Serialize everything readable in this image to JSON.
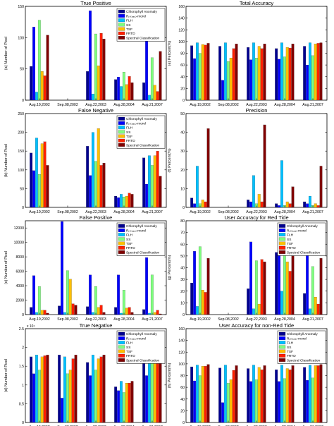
{
  "legend_labels": [
    "Chlorophyll Anomaly",
    "Rᵣₛ₍₅₅₅₎-morel",
    "FLH",
    "SS",
    "TSF",
    "FRTD",
    "Spectral Classification"
  ],
  "colors": [
    "#00008f",
    "#0000ff",
    "#00bfff",
    "#7fff7f",
    "#ffbf00",
    "#ff2000",
    "#800000"
  ],
  "chart_data": [
    {
      "type": "bar",
      "title": "True Positive",
      "ylabel": "(a) Number of Pixel",
      "categories": [
        "Aug.19,2002",
        "Sep.08,2002",
        "Aug.22,2003",
        "Aug.28,2004",
        "Aug.21,2007"
      ],
      "ylim": [
        0,
        150
      ],
      "yticks": [
        "0",
        "50",
        "100",
        "150"
      ],
      "ytick_values": [
        0,
        50,
        100,
        150
      ],
      "legend": true,
      "series": [
        {
          "name": "Chlorophyll Anomaly",
          "values": [
            54,
            0,
            46,
            33,
            28
          ]
        },
        {
          "name": "Rᵣₛ₍₅₅₅₎-morel",
          "values": [
            117,
            0,
            143,
            37,
            97
          ]
        },
        {
          "name": "FLH",
          "values": [
            13,
            0,
            10,
            22,
            8
          ]
        },
        {
          "name": "SS",
          "values": [
            128,
            0,
            106,
            45,
            68
          ]
        },
        {
          "name": "TSF",
          "values": [
            46,
            0,
            55,
            25,
            24
          ]
        },
        {
          "name": "FRTD",
          "values": [
            39,
            0,
            107,
            38,
            14
          ]
        },
        {
          "name": "Spectral Classification",
          "values": [
            104,
            0,
            98,
            28,
            78
          ]
        }
      ]
    },
    {
      "type": "bar",
      "title": "Total Accuracy",
      "ylabel": "(e) Percent(%)",
      "categories": [
        "Aug.19,2002",
        "Sep.08,2002",
        "Aug.22,2003",
        "Aug.28,2004",
        "Aug.21,2007"
      ],
      "ylim": [
        0,
        160
      ],
      "yticks": [
        "0",
        "20",
        "40",
        "60",
        "80",
        "100",
        "120",
        "140",
        "160"
      ],
      "ytick_values": [
        0,
        20,
        40,
        60,
        80,
        100,
        120,
        140,
        160
      ],
      "legend": false,
      "series": [
        {
          "name": "Chlorophyll Anomaly",
          "values": [
            93,
            92,
            90,
            88,
            92
          ]
        },
        {
          "name": "Rᵣₛ₍₅₅₅₎-morel",
          "values": [
            71,
            34,
            69,
            70,
            60
          ]
        },
        {
          "name": "FLH",
          "values": [
            98,
            98,
            98,
            98,
            98
          ]
        },
        {
          "name": "SS",
          "values": [
            80,
            66,
            72,
            74,
            76
          ]
        },
        {
          "name": "TSF",
          "values": [
            95,
            72,
            92,
            90,
            96
          ]
        },
        {
          "name": "FRTD",
          "values": [
            94,
            88,
            88,
            89,
            97
          ]
        },
        {
          "name": "Spectral Classification",
          "values": [
            97,
            96,
            96,
            96,
            98
          ]
        }
      ]
    },
    {
      "type": "bar",
      "title": "False Negative",
      "ylabel": "(b) Number of Pixel",
      "categories": [
        "Aug.19,2002",
        "Sep.08,2002",
        "Aug.22,2003",
        "Aug.28,2004",
        "Aug.21,2007"
      ],
      "ylim": [
        0,
        250
      ],
      "yticks": [
        "0",
        "50",
        "100",
        "150",
        "200",
        "250"
      ],
      "ytick_values": [
        0,
        50,
        100,
        150,
        200,
        250
      ],
      "legend": true,
      "series": [
        {
          "name": "Chlorophyll Anomaly",
          "values": [
            145,
            0,
            163,
            30,
            132
          ]
        },
        {
          "name": "Rᵣₛ₍₅₅₅₎-morel",
          "values": [
            98,
            0,
            85,
            26,
            62
          ]
        },
        {
          "name": "FLH",
          "values": [
            185,
            0,
            200,
            35,
            138
          ]
        },
        {
          "name": "SS",
          "values": [
            88,
            0,
            123,
            28,
            112
          ]
        },
        {
          "name": "TSF",
          "values": [
            170,
            0,
            210,
            30,
            138
          ]
        },
        {
          "name": "FRTD",
          "values": [
            175,
            0,
            112,
            38,
            150
          ]
        },
        {
          "name": "Spectral Classification",
          "values": [
            112,
            0,
            118,
            35,
            83
          ]
        }
      ]
    },
    {
      "type": "bar",
      "title": "Precision",
      "ylabel": "(f) Percent(%)",
      "categories": [
        "Aug.19,2002",
        "Sep.08,2002",
        "Aug.22,2003",
        "Aug.28,2004",
        "Aug.21,2007"
      ],
      "ylim": [
        0,
        50
      ],
      "yticks": [
        "0",
        "10",
        "20",
        "30",
        "40",
        "50"
      ],
      "ytick_values": [
        0,
        10,
        20,
        30,
        40,
        50
      ],
      "legend": false,
      "series": [
        {
          "name": "Chlorophyll Anomaly",
          "values": [
            5,
            0,
            4,
            2,
            3
          ]
        },
        {
          "name": "Rᵣₛ₍₅₅₅₎-morel",
          "values": [
            2,
            0,
            3,
            1,
            2
          ]
        },
        {
          "name": "FLH",
          "values": [
            22,
            0,
            17,
            25,
            6
          ]
        },
        {
          "name": "SS",
          "values": [
            2,
            0,
            2,
            1,
            1
          ]
        },
        {
          "name": "TSF",
          "values": [
            4,
            0,
            7,
            3,
            2
          ]
        },
        {
          "name": "FRTD",
          "values": [
            3,
            0,
            3,
            2,
            1
          ]
        },
        {
          "name": "Spectral Classification",
          "values": [
            42,
            0,
            44,
            11,
            22
          ]
        }
      ]
    },
    {
      "type": "bar",
      "title": "False Positive",
      "ylabel": "(c) Number of Pixel",
      "categories": [
        "Aug.19,2002",
        "Sep.08,2002",
        "Aug.22,2003",
        "Aug.28,2004",
        "Aug.21,2007"
      ],
      "ylim": [
        0,
        13000
      ],
      "yticks": [
        "0",
        "2000",
        "4000",
        "6000",
        "8000",
        "10000",
        "12000"
      ],
      "ytick_values": [
        0,
        2000,
        4000,
        6000,
        8000,
        10000,
        12000
      ],
      "legend": true,
      "series": [
        {
          "name": "Chlorophyll Anomaly",
          "values": [
            1000,
            1200,
            1100,
            1000,
            700
          ]
        },
        {
          "name": "Rᵣₛ₍₅₅₅₎-morel",
          "values": [
            5400,
            12900,
            5500,
            5500,
            7900
          ]
        },
        {
          "name": "FLH",
          "values": [
            300,
            300,
            300,
            200,
            200
          ]
        },
        {
          "name": "SS",
          "values": [
            3900,
            6100,
            3900,
            3400,
            5500
          ]
        },
        {
          "name": "TSF",
          "values": [
            600,
            4900,
            1000,
            900,
            300
          ]
        },
        {
          "name": "FRTD",
          "values": [
            600,
            1500,
            1300,
            1000,
            600
          ]
        },
        {
          "name": "Spectral Classification",
          "values": [
            200,
            1300,
            300,
            300,
            100
          ]
        }
      ]
    },
    {
      "type": "bar",
      "title": "User Accuracy for Red Tide",
      "ylabel": "(g) Percent(%)",
      "categories": [
        "Aug.19,2002",
        "Sep.08,2002",
        "Aug.22,2003",
        "Aug.28,2004",
        "Aug.21,2007"
      ],
      "ylim": [
        0,
        80
      ],
      "yticks": [
        "0",
        "10",
        "20",
        "30",
        "40",
        "50",
        "60",
        "70",
        "80"
      ],
      "ytick_values": [
        0,
        10,
        20,
        30,
        40,
        50,
        60,
        70,
        80
      ],
      "legend": true,
      "series": [
        {
          "name": "Chlorophyll Anomaly",
          "values": [
            27,
            0,
            22,
            53,
            18
          ]
        },
        {
          "name": "Rᵣₛ₍₅₅₅₎-morel",
          "values": [
            54,
            0,
            62,
            58,
            61
          ]
        },
        {
          "name": "FLH",
          "values": [
            7,
            0,
            5,
            20,
            5
          ]
        },
        {
          "name": "SS",
          "values": [
            58,
            0,
            46,
            71,
            41
          ]
        },
        {
          "name": "TSF",
          "values": [
            21,
            0,
            9,
            45,
            15
          ]
        },
        {
          "name": "FRTD",
          "values": [
            19,
            0,
            47,
            37,
            9
          ]
        },
        {
          "name": "Spectral Classification",
          "values": [
            48,
            0,
            45,
            50,
            48
          ]
        }
      ]
    },
    {
      "type": "bar",
      "title": "True Negative",
      "ylabel": "(d) Number of Pixel",
      "scale_label": "x 10⁴",
      "categories": [
        "Aug.19,2002",
        "Sep.08,2002",
        "Aug.22,2003",
        "Aug.28,2004",
        "Aug.21,2007"
      ],
      "ylim": [
        0,
        2.5
      ],
      "yticks": [
        "0",
        "0.5",
        "1",
        "1.5",
        "2",
        "2.5"
      ],
      "ytick_values": [
        0,
        0.5,
        1,
        1.5,
        2,
        2.5
      ],
      "legend": true,
      "series": [
        {
          "name": "Chlorophyll Anomaly",
          "values": [
            1.75,
            1.8,
            1.6,
            0.95,
            2.05
          ]
        },
        {
          "name": "Rᵣₛ₍₅₅₅₎-morel",
          "values": [
            1.3,
            0.65,
            1.25,
            0.85,
            1.25
          ]
        },
        {
          "name": "FLH",
          "values": [
            1.8,
            1.75,
            1.8,
            1.1,
            2.1
          ]
        },
        {
          "name": "SS",
          "values": [
            1.4,
            1.3,
            1.4,
            0.8,
            1.7
          ]
        },
        {
          "name": "TSF",
          "values": [
            1.75,
            1.4,
            1.7,
            1.05,
            2.05
          ]
        },
        {
          "name": "FRTD",
          "values": [
            1.78,
            1.7,
            1.75,
            1.05,
            2.1
          ]
        },
        {
          "name": "Spectral Classification",
          "values": [
            1.8,
            1.8,
            1.8,
            1.1,
            2.15
          ]
        }
      ]
    },
    {
      "type": "bar",
      "title": "User Accuracy for non-Red Tide",
      "ylabel": "(h) Percent(%)",
      "categories": [
        "Aug.19,2002",
        "Sep.08,2002",
        "Aug.22,2003",
        "Aug.28,2004",
        "Aug.21,2007"
      ],
      "ylim": [
        0,
        160
      ],
      "yticks": [
        "0",
        "20",
        "40",
        "60",
        "80",
        "100",
        "120",
        "140",
        "160"
      ],
      "ytick_values": [
        0,
        20,
        40,
        60,
        80,
        100,
        120,
        140,
        160
      ],
      "legend": true,
      "series": [
        {
          "name": "Chlorophyll Anomaly",
          "values": [
            95,
            93,
            92,
            90,
            94
          ]
        },
        {
          "name": "Rᵣₛ₍₅₅₅₎-morel",
          "values": [
            71,
            34,
            70,
            70,
            72
          ]
        },
        {
          "name": "FLH",
          "values": [
            98,
            98,
            98,
            98,
            98
          ]
        },
        {
          "name": "SS",
          "values": [
            80,
            67,
            73,
            75,
            76
          ]
        },
        {
          "name": "TSF",
          "values": [
            96,
            73,
            94,
            92,
            97
          ]
        },
        {
          "name": "FRTD",
          "values": [
            96,
            89,
            90,
            90,
            97
          ]
        },
        {
          "name": "Spectral Classification",
          "values": [
            99,
            97,
            97,
            97,
            99
          ]
        }
      ]
    }
  ]
}
